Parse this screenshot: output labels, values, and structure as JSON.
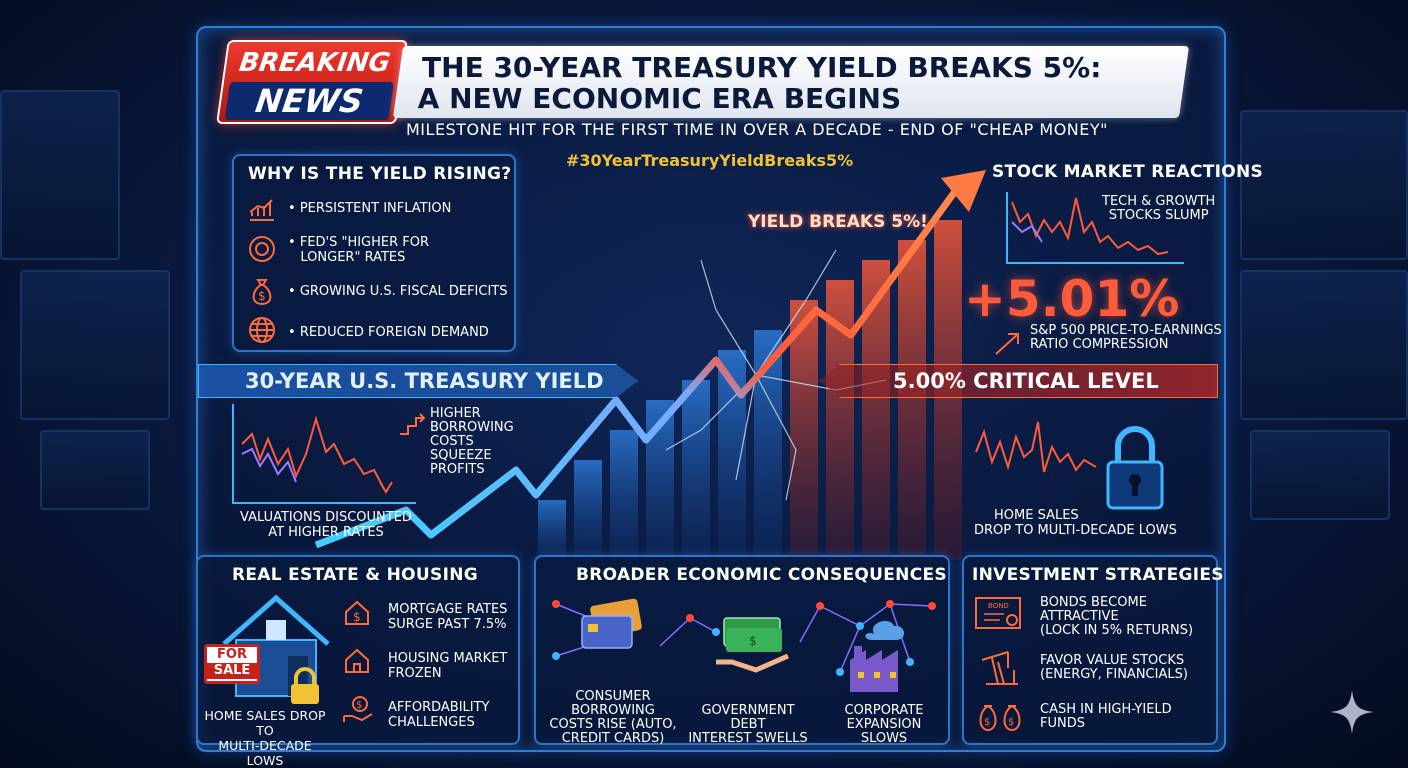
{
  "header": {
    "badge_line1": "BREAKING",
    "badge_line2": "NEWS",
    "title_line1": "THE 30-YEAR TREASURY YIELD BREAKS 5%:",
    "title_line2": "A NEW ECONOMIC ERA BEGINS",
    "subtitle": "MILESTONE HIT FOR THE FIRST TIME IN OVER A DECADE - END OF \"CHEAP MONEY\"",
    "hashtag": "#30YearTreasuryYieldBreaks5%"
  },
  "why": {
    "title": "WHY IS THE YIELD RISING?",
    "items": [
      {
        "icon": "bar-chart-icon",
        "line1": "PERSISTENT INFLATION",
        "line2": ""
      },
      {
        "icon": "fed-seal-icon",
        "line1": "FED'S \"HIGHER FOR",
        "line2": "LONGER\" RATES"
      },
      {
        "icon": "money-bag-icon",
        "line1": "GROWING U.S. FISCAL DEFICITS",
        "line2": ""
      },
      {
        "icon": "globe-icon",
        "line1": "REDUCED FOREIGN DEMAND",
        "line2": ""
      }
    ]
  },
  "center": {
    "yield_label": "YIELD BREAKS 5%!",
    "treasury_bar": "30-YEAR U.S. TREASURY YIELD",
    "critical_bar": "5.00% CRITICAL LEVEL"
  },
  "stock": {
    "title": "STOCK MARKET REACTIONS",
    "tech_line1": "TECH & GROWTH",
    "tech_line2": "STOCKS SLUMP",
    "big_value": "+5.01%",
    "pe_line1": "S&P 500 PRICE-TO-EARNINGS",
    "pe_line2": "RATIO COMPRESSION",
    "home_line1": "HOME SALES",
    "home_line2": "DROP TO MULTI-DECADE LOWS"
  },
  "valuations": {
    "costs_lines": [
      "HIGHER",
      "BORROWING",
      "COSTS",
      "SQUEEZE",
      "PROFITS"
    ],
    "line1": "VALUATIONS DISCOUNTED",
    "line2": "AT HIGHER RATES"
  },
  "real_estate": {
    "title": "REAL ESTATE & HOUSING",
    "sign_line1": "FOR",
    "sign_line2": "SALE",
    "items": [
      {
        "line1": "MORTGAGE RATES",
        "line2": "SURGE PAST 7.5%"
      },
      {
        "line1": "HOUSING MARKET",
        "line2": "FROZEN"
      },
      {
        "line1": "AFFORDABILITY",
        "line2": "CHALLENGES"
      }
    ],
    "caption_line1": "HOME SALES DROP TO",
    "caption_line2": "MULTI-DECADE LOWS"
  },
  "broader": {
    "title": "BROADER ECONOMIC CONSEQUENCES",
    "consumer": [
      "CONSUMER",
      "BORROWING",
      "COSTS RISE (AUTO,",
      "CREDIT CARDS)"
    ],
    "government": [
      "GOVERNMENT DEBT",
      "INTEREST SWELLS"
    ],
    "corporate": [
      "CORPORATE",
      "EXPANSION",
      "SLOWS"
    ]
  },
  "invest": {
    "title": "INVESTMENT STRATEGIES",
    "bond_label": "BOND",
    "items": [
      {
        "line1": "BONDS BECOME",
        "line2": "ATTRACTIVE",
        "line3": "(LOCK IN 5% RETURNS)"
      },
      {
        "line1": "FAVOR VALUE STOCKS",
        "line2": "(ENERGY, FINANCIALS)",
        "line3": ""
      },
      {
        "line1": "CASH IN HIGH-YIELD",
        "line2": "FUNDS",
        "line3": ""
      }
    ]
  },
  "colors": {
    "accent_red": "#e8352c",
    "accent_orange": "#ff6a3a",
    "accent_blue": "#3fb6ff",
    "gold": "#f2c233"
  }
}
